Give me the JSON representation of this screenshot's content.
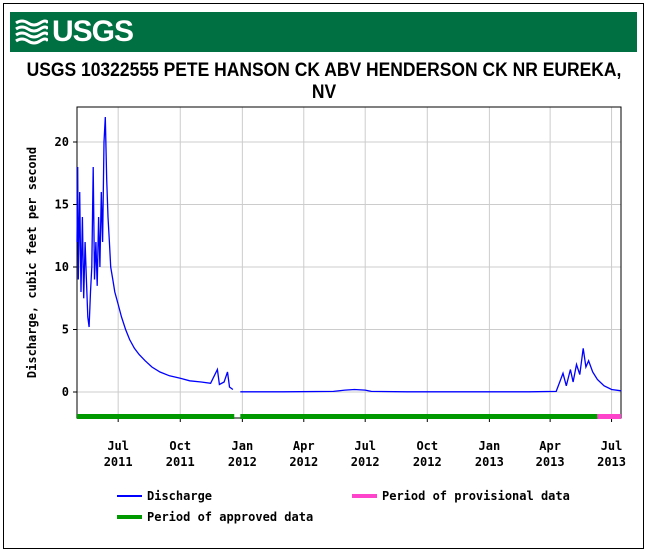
{
  "header": {
    "logo_text": "USGS"
  },
  "chart_data": {
    "type": "line",
    "title": "USGS 10322555 PETE HANSON CK ABV HENDERSON CK NR EUREKA, NV",
    "ylabel": "Discharge, cubic feet per second",
    "xlabel": "",
    "ylim": [
      0,
      22
    ],
    "yticks": [
      0,
      5,
      10,
      15,
      20
    ],
    "grid": true,
    "x_ticks": [
      {
        "date": "2011-07-01",
        "month": "Jul",
        "year": "2011"
      },
      {
        "date": "2011-10-01",
        "month": "Oct",
        "year": "2011"
      },
      {
        "date": "2012-01-01",
        "month": "Jan",
        "year": "2012"
      },
      {
        "date": "2012-04-01",
        "month": "Apr",
        "year": "2012"
      },
      {
        "date": "2012-07-01",
        "month": "Jul",
        "year": "2012"
      },
      {
        "date": "2012-10-01",
        "month": "Oct",
        "year": "2012"
      },
      {
        "date": "2013-01-01",
        "month": "Jan",
        "year": "2013"
      },
      {
        "date": "2013-04-01",
        "month": "Apr",
        "year": "2013"
      },
      {
        "date": "2013-07-01",
        "month": "Jul",
        "year": "2013"
      }
    ],
    "xlim": [
      "2011-05-01",
      "2013-07-15"
    ],
    "series": [
      {
        "name": "Discharge",
        "color": "#0000ff",
        "points": [
          [
            "2011-05-01",
            12
          ],
          [
            "2011-05-02",
            18
          ],
          [
            "2011-05-03",
            9
          ],
          [
            "2011-05-05",
            16
          ],
          [
            "2011-05-07",
            8
          ],
          [
            "2011-05-09",
            14
          ],
          [
            "2011-05-11",
            7.5
          ],
          [
            "2011-05-13",
            12
          ],
          [
            "2011-05-15",
            9
          ],
          [
            "2011-05-17",
            6
          ],
          [
            "2011-05-19",
            5.2
          ],
          [
            "2011-05-21",
            8
          ],
          [
            "2011-05-23",
            10
          ],
          [
            "2011-05-25",
            18
          ],
          [
            "2011-05-27",
            9
          ],
          [
            "2011-05-29",
            12
          ],
          [
            "2011-05-31",
            8.5
          ],
          [
            "2011-06-02",
            14
          ],
          [
            "2011-06-04",
            10
          ],
          [
            "2011-06-06",
            16
          ],
          [
            "2011-06-08",
            12
          ],
          [
            "2011-06-10",
            20
          ],
          [
            "2011-06-12",
            22
          ],
          [
            "2011-06-14",
            17
          ],
          [
            "2011-06-16",
            14
          ],
          [
            "2011-06-18",
            12
          ],
          [
            "2011-06-20",
            10
          ],
          [
            "2011-06-23",
            9
          ],
          [
            "2011-06-26",
            8
          ],
          [
            "2011-07-01",
            7
          ],
          [
            "2011-07-06",
            6
          ],
          [
            "2011-07-12",
            5
          ],
          [
            "2011-07-18",
            4.2
          ],
          [
            "2011-07-25",
            3.5
          ],
          [
            "2011-08-01",
            3
          ],
          [
            "2011-08-10",
            2.5
          ],
          [
            "2011-08-20",
            2
          ],
          [
            "2011-09-01",
            1.6
          ],
          [
            "2011-09-15",
            1.3
          ],
          [
            "2011-10-01",
            1.1
          ],
          [
            "2011-10-15",
            0.9
          ],
          [
            "2011-11-01",
            0.8
          ],
          [
            "2011-11-15",
            0.7
          ],
          [
            "2011-11-25",
            1.8
          ],
          [
            "2011-11-28",
            0.6
          ],
          [
            "2011-12-05",
            0.8
          ],
          [
            "2011-12-10",
            1.6
          ],
          [
            "2011-12-13",
            0.4
          ],
          [
            "2011-12-18",
            0.2
          ],
          [
            "2011-12-20",
            null
          ],
          [
            "2011-12-29",
            0.02
          ],
          [
            "2012-03-01",
            0.02
          ],
          [
            "2012-05-15",
            0.05
          ],
          [
            "2012-06-01",
            0.15
          ],
          [
            "2012-06-15",
            0.2
          ],
          [
            "2012-07-01",
            0.15
          ],
          [
            "2012-07-10",
            0.05
          ],
          [
            "2012-09-01",
            0.02
          ],
          [
            "2012-12-01",
            0.02
          ],
          [
            "2013-03-01",
            0.02
          ],
          [
            "2013-04-10",
            0.05
          ],
          [
            "2013-04-20",
            1.5
          ],
          [
            "2013-04-25",
            0.5
          ],
          [
            "2013-05-01",
            1.8
          ],
          [
            "2013-05-05",
            0.8
          ],
          [
            "2013-05-10",
            2.2
          ],
          [
            "2013-05-15",
            1.4
          ],
          [
            "2013-05-20",
            3.5
          ],
          [
            "2013-05-24",
            2.0
          ],
          [
            "2013-05-28",
            2.5
          ],
          [
            "2013-06-03",
            1.6
          ],
          [
            "2013-06-10",
            1.0
          ],
          [
            "2013-06-20",
            0.5
          ],
          [
            "2013-07-01",
            0.2
          ],
          [
            "2013-07-15",
            0.1
          ]
        ]
      }
    ],
    "periods": [
      {
        "name": "Period of approved data",
        "color": "#009900",
        "ranges": [
          [
            "2011-05-01",
            "2011-12-20"
          ],
          [
            "2011-12-29",
            "2013-06-10"
          ]
        ]
      },
      {
        "name": "Period of provisional data",
        "color": "#ff44cc",
        "ranges": [
          [
            "2013-06-10",
            "2013-07-15"
          ]
        ]
      }
    ],
    "legend": {
      "position": "bottom",
      "items": [
        {
          "label": "Discharge",
          "color": "#0000ff"
        },
        {
          "label": "Period of provisional data",
          "color": "#ff44cc"
        },
        {
          "label": "Period of approved data",
          "color": "#009900"
        }
      ]
    }
  }
}
